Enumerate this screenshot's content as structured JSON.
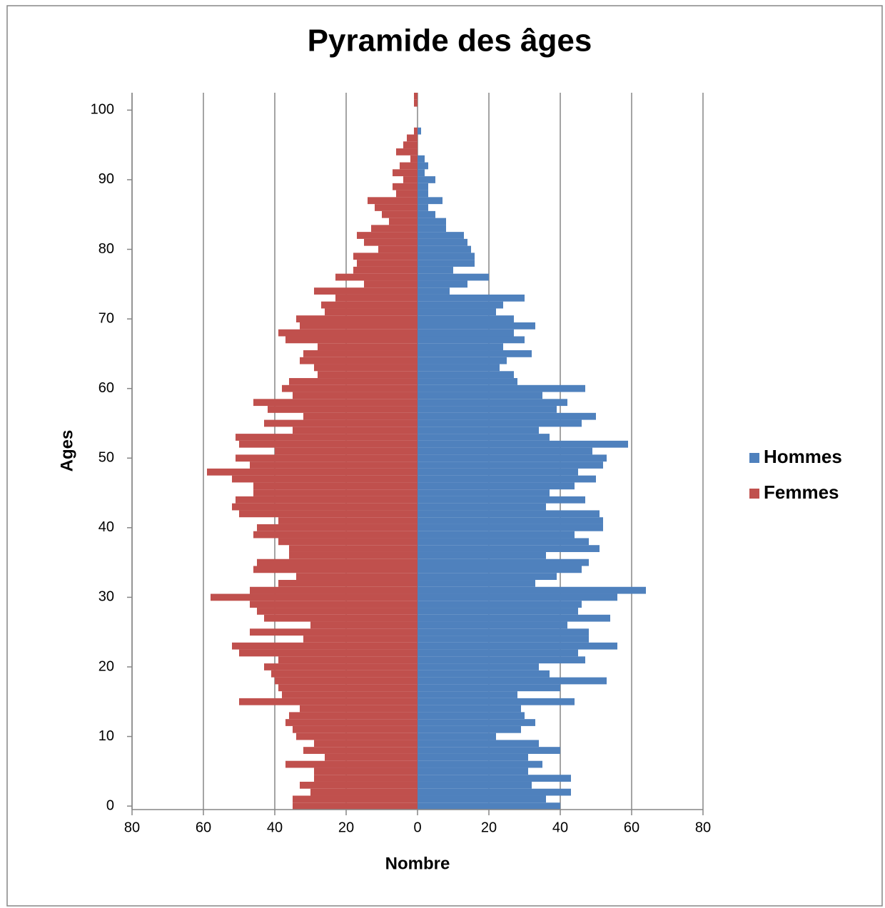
{
  "chart_data": {
    "type": "bar",
    "orientation": "horizontal",
    "title": "Pyramide des âges",
    "x_label": "Nombre",
    "y_label": "Ages",
    "y": [
      0,
      1,
      2,
      3,
      4,
      5,
      6,
      7,
      8,
      9,
      10,
      11,
      12,
      13,
      14,
      15,
      16,
      17,
      18,
      19,
      20,
      21,
      22,
      23,
      24,
      25,
      26,
      27,
      28,
      29,
      30,
      31,
      32,
      33,
      34,
      35,
      36,
      37,
      38,
      39,
      40,
      41,
      42,
      43,
      44,
      45,
      46,
      47,
      48,
      49,
      50,
      51,
      52,
      53,
      54,
      55,
      56,
      57,
      58,
      59,
      60,
      61,
      62,
      63,
      64,
      65,
      66,
      67,
      68,
      69,
      70,
      71,
      72,
      73,
      74,
      75,
      76,
      77,
      78,
      79,
      80,
      81,
      82,
      83,
      84,
      85,
      86,
      87,
      88,
      89,
      90,
      91,
      92,
      93,
      94,
      95,
      96,
      97,
      98,
      99,
      100,
      101,
      102
    ],
    "series": [
      {
        "name": "Hommes",
        "color": "#4f81bd",
        "values": [
          40,
          36,
          43,
          32,
          43,
          31,
          35,
          31,
          40,
          34,
          22,
          29,
          33,
          30,
          29,
          44,
          28,
          40,
          53,
          37,
          34,
          47,
          45,
          56,
          48,
          48,
          42,
          54,
          45,
          46,
          56,
          64,
          33,
          39,
          46,
          48,
          36,
          51,
          48,
          44,
          52,
          52,
          51,
          36,
          47,
          37,
          44,
          50,
          45,
          52,
          53,
          49,
          59,
          37,
          34,
          46,
          50,
          39,
          42,
          35,
          47,
          28,
          27,
          23,
          25,
          32,
          24,
          30,
          27,
          33,
          27,
          22,
          24,
          30,
          9,
          14,
          20,
          10,
          16,
          16,
          15,
          14,
          13,
          8,
          8,
          5,
          3,
          7,
          3,
          3,
          5,
          2,
          3,
          2,
          0,
          0,
          0,
          1,
          0,
          0,
          0,
          0,
          0
        ]
      },
      {
        "name": "Femmes",
        "color": "#c0504d",
        "values": [
          -35,
          -35,
          -30,
          -33,
          -29,
          -29,
          -37,
          -26,
          -32,
          -29,
          -34,
          -35,
          -37,
          -36,
          -33,
          -50,
          -38,
          -39,
          -40,
          -41,
          -43,
          -39,
          -50,
          -52,
          -32,
          -47,
          -30,
          -43,
          -45,
          -47,
          -58,
          -47,
          -39,
          -34,
          -46,
          -45,
          -36,
          -36,
          -39,
          -46,
          -45,
          -39,
          -50,
          -52,
          -51,
          -46,
          -46,
          -52,
          -59,
          -47,
          -51,
          -40,
          -50,
          -51,
          -35,
          -43,
          -32,
          -42,
          -46,
          -35,
          -38,
          -36,
          -28,
          -29,
          -33,
          -32,
          -28,
          -37,
          -39,
          -33,
          -34,
          -26,
          -27,
          -23,
          -29,
          -15,
          -23,
          -18,
          -17,
          -18,
          -11,
          -15,
          -17,
          -13,
          -8,
          -10,
          -12,
          -14,
          -6,
          -7,
          -4,
          -7,
          -5,
          -2,
          -6,
          -4,
          -3,
          -1,
          0,
          0,
          0,
          -1,
          -1
        ]
      }
    ],
    "xlim": [
      -80,
      80
    ],
    "xticks": [
      {
        "value": -80,
        "label": "80"
      },
      {
        "value": -60,
        "label": "60"
      },
      {
        "value": -40,
        "label": "40"
      },
      {
        "value": -20,
        "label": "20"
      },
      0,
      20,
      40,
      60,
      80
    ],
    "ylim": [
      -0.5,
      102.5
    ],
    "yticks": [
      0,
      10,
      20,
      30,
      40,
      50,
      60,
      70,
      80,
      90,
      100
    ],
    "grid": true,
    "legend": "right"
  }
}
